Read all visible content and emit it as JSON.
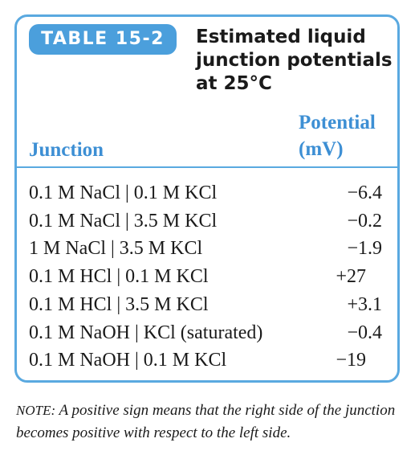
{
  "badge": "TABLE 15-2",
  "title": {
    "lines": [
      "Estimated liquid",
      "junction potentials",
      "at 25°C"
    ]
  },
  "table": {
    "headers": {
      "junction": "Junction",
      "potential": [
        "Potential",
        "(mV)"
      ]
    },
    "rows": [
      [
        "0.1 M NaCl | 0.1 M KCl",
        "−6.4"
      ],
      [
        "0.1 M NaCl | 3.5 M KCl",
        "−0.2"
      ],
      [
        "1 M NaCl | 3.5 M KCl",
        "−1.9"
      ],
      [
        "0.1 M HCl | 0.1 M KCl",
        "+27"
      ],
      [
        "0.1 M HCl | 3.5 M KCl",
        "+3.1"
      ],
      [
        "0.1 M NaOH | KCl (saturated)",
        "−0.4"
      ],
      [
        "0.1 M NaOH | 0.1 M KCl",
        "−19"
      ]
    ]
  },
  "note": {
    "label": "NOTE:",
    "text": "A positive sign means that the right side of the junction becomes positive with respect to the left side."
  }
}
